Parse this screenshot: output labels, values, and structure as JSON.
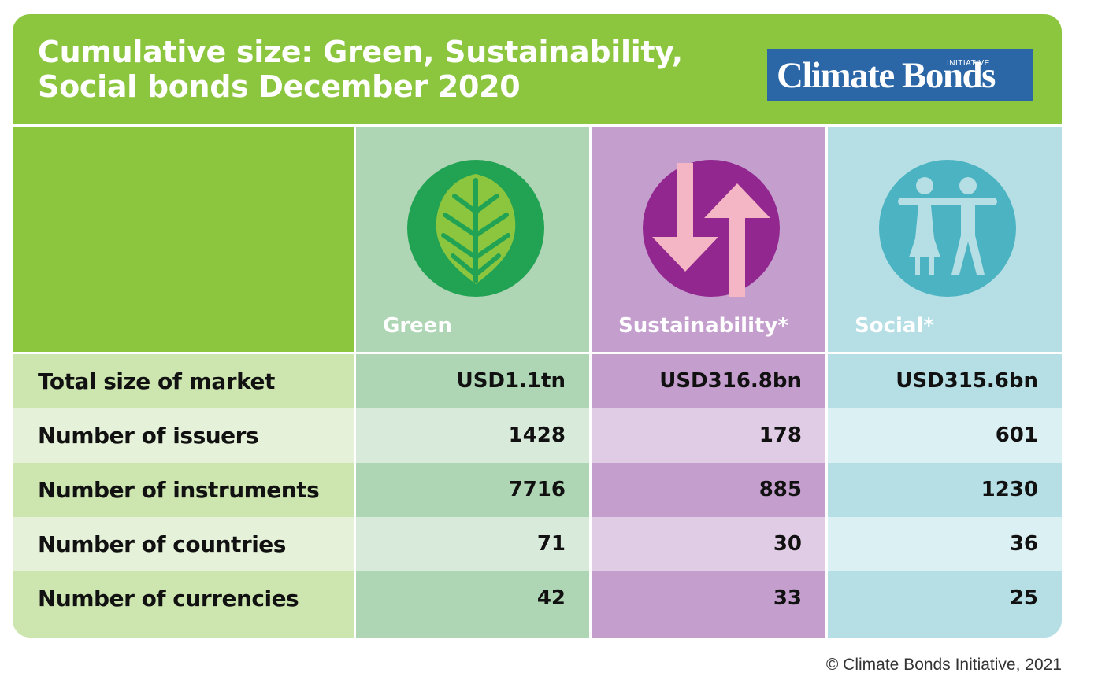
{
  "chart_data": {
    "type": "table",
    "title": "Cumulative size: Green, Sustainability, Social bonds December 2020",
    "columns": [
      "Green",
      "Sustainability*",
      "Social*"
    ],
    "rows": [
      {
        "label": "Total size of market",
        "values": [
          "USD1.1tn",
          "USD316.8bn",
          "USD315.6bn"
        ]
      },
      {
        "label": "Number of issuers",
        "values": [
          "1428",
          "178",
          "601"
        ]
      },
      {
        "label": "Number of instruments",
        "values": [
          "7716",
          "885",
          "1230"
        ]
      },
      {
        "label": "Number of countries",
        "values": [
          "71",
          "30",
          "36"
        ]
      },
      {
        "label": "Number of currencies",
        "values": [
          "42",
          "33",
          "25"
        ]
      }
    ]
  },
  "title_lines": [
    "Cumulative size: Green, Sustainability,",
    "Social bonds December 2020"
  ],
  "logo": {
    "main": "Climate Bonds",
    "sub": "INITIATIVE"
  },
  "icons": [
    "leaf-icon",
    "up-down-arrows-icon",
    "people-icon"
  ],
  "copyright": "© Climate Bonds Initiative, 2021",
  "colors": {
    "header_green": "#8cc63f",
    "green_header_col": "#aed6b4",
    "green_circle": "#22a354",
    "leaf": "#8cc63f",
    "sustainability_header_col": "#c49fce",
    "sustainability_circle": "#92278f",
    "arrows": "#f4b5c5",
    "social_header_col": "#b5dfe5",
    "social_circle": "#4bb3c1",
    "people": "#b5dfe5",
    "label_dark": "#cde6b0",
    "label_light": "#e5f1d8",
    "green_dark": "#aed6b4",
    "green_light": "#d8ead9",
    "sus_dark": "#c49fce",
    "sus_light": "#e1cce6",
    "soc_dark": "#b5dfe5",
    "soc_light": "#dbf0f3"
  }
}
